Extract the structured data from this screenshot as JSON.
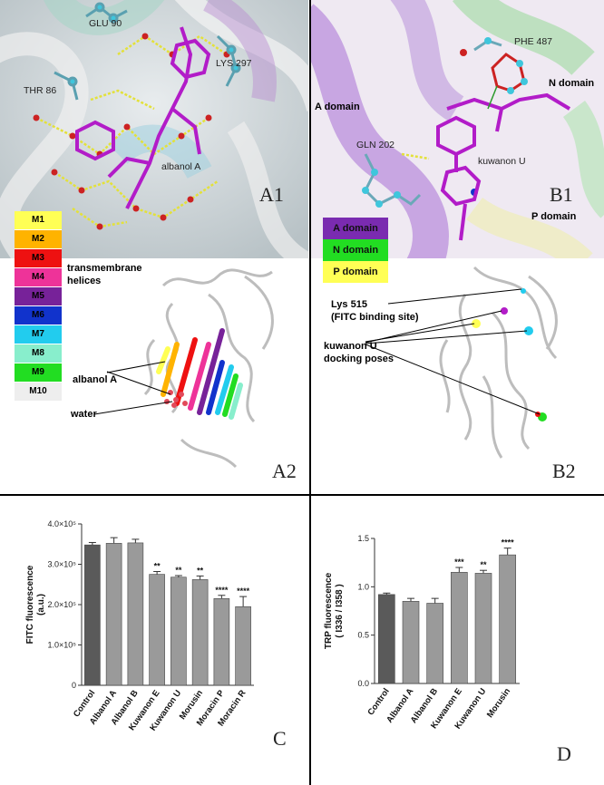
{
  "panel_A1": {
    "letter": "A1",
    "residues": [
      "GLU 90",
      "LYS 297",
      "THR 86"
    ],
    "ligand": "albanol A"
  },
  "helix_legend": [
    {
      "label": "M1",
      "color": "#ffff55"
    },
    {
      "label": "M2",
      "color": "#ffb300"
    },
    {
      "label": "M3",
      "color": "#ee1111"
    },
    {
      "label": "M4",
      "color": "#ee3399"
    },
    {
      "label": "M5",
      "color": "#772299"
    },
    {
      "label": "M6",
      "color": "#1133cc"
    },
    {
      "label": "M7",
      "color": "#22ccee"
    },
    {
      "label": "M8",
      "color": "#88eecc"
    },
    {
      "label": "M9",
      "color": "#22dd22"
    },
    {
      "label": "M10",
      "color": "#eeeeee"
    }
  ],
  "panel_A2": {
    "letter": "A2",
    "helices_label": "transmembrane\nhelices",
    "albanol_label": "albanol A",
    "water_label": "water"
  },
  "panel_B1": {
    "letter": "B1",
    "residues": [
      "PHE 487",
      "GLN 202"
    ],
    "ligand": "kuwanon U",
    "domains": [
      "A domain",
      "N domain",
      "P domain"
    ]
  },
  "domain_legend": [
    {
      "label": "A domain",
      "color": "#7a2bb0"
    },
    {
      "label": "N domain",
      "color": "#22dd22"
    },
    {
      "label": "P domain",
      "color": "#ffff55"
    }
  ],
  "panel_B2": {
    "letter": "B2",
    "lys_label": "Lys 515\n(FITC binding site)",
    "poses_label": "kuwanon U\ndocking poses"
  },
  "chart_data": [
    {
      "panel": "C",
      "type": "bar",
      "ylabel": "FITC fluorescence\n(a.u.)",
      "ylim": [
        0,
        400000
      ],
      "yticks": [
        "0",
        "1.0×10⁵",
        "2.0×10⁵",
        "3.0×10⁵",
        "4.0×10⁵"
      ],
      "categories": [
        "Control",
        "Albanol A",
        "Albanol B",
        "Kuwanon E",
        "Kuwanon U",
        "Morusin",
        "Moracin P",
        "Moracin R"
      ],
      "values": [
        348000,
        352000,
        353000,
        275000,
        268000,
        262000,
        215000,
        195000
      ],
      "errors": [
        6000,
        14000,
        9000,
        7000,
        4000,
        9000,
        8000,
        25000
      ],
      "significance": [
        "",
        "",
        "",
        "**",
        "**",
        "**",
        "****",
        "****"
      ],
      "colors": [
        "#5a5a5a",
        "#9a9a9a",
        "#9a9a9a",
        "#9a9a9a",
        "#9a9a9a",
        "#9a9a9a",
        "#9a9a9a",
        "#9a9a9a"
      ]
    },
    {
      "panel": "D",
      "type": "bar",
      "ylabel": "TRP fluorescence\n( I336 / I358 )",
      "ylim": [
        0,
        1.5
      ],
      "yticks": [
        "0.0",
        "0.5",
        "1.0",
        "1.5"
      ],
      "categories": [
        "Control",
        "Albanol A",
        "Albanol B",
        "Kuwanon E",
        "Kuwanon U",
        "Morusin"
      ],
      "values": [
        0.92,
        0.85,
        0.83,
        1.15,
        1.14,
        1.33
      ],
      "errors": [
        0.015,
        0.03,
        0.05,
        0.05,
        0.03,
        0.07
      ],
      "significance": [
        "",
        "",
        "",
        "***",
        "**",
        "****"
      ],
      "colors": [
        "#5a5a5a",
        "#9a9a9a",
        "#9a9a9a",
        "#9a9a9a",
        "#9a9a9a",
        "#9a9a9a"
      ]
    }
  ],
  "panel_letters": {
    "C": "C",
    "D": "D"
  }
}
